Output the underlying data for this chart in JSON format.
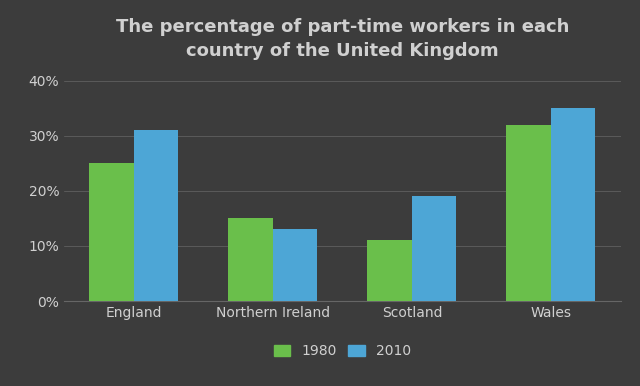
{
  "title": "The percentage of part-time workers in each\ncountry of the United Kingdom",
  "categories": [
    "England",
    "Northern Ireland",
    "Scotland",
    "Wales"
  ],
  "values_1980": [
    25,
    15,
    11,
    32
  ],
  "values_2010": [
    31,
    13,
    19,
    35
  ],
  "color_1980": "#6abf4b",
  "color_2010": "#4da6d6",
  "background_color": "#3c3c3c",
  "text_color": "#d0d0d0",
  "grid_color": "#666666",
  "ylim": [
    0,
    42
  ],
  "yticks": [
    0,
    10,
    20,
    30,
    40
  ],
  "ytick_labels": [
    "0%",
    "10%",
    "20%",
    "30%",
    "40%"
  ],
  "legend_labels": [
    "1980",
    "2010"
  ],
  "bar_width": 0.32,
  "title_fontsize": 13,
  "tick_fontsize": 10,
  "legend_fontsize": 10
}
